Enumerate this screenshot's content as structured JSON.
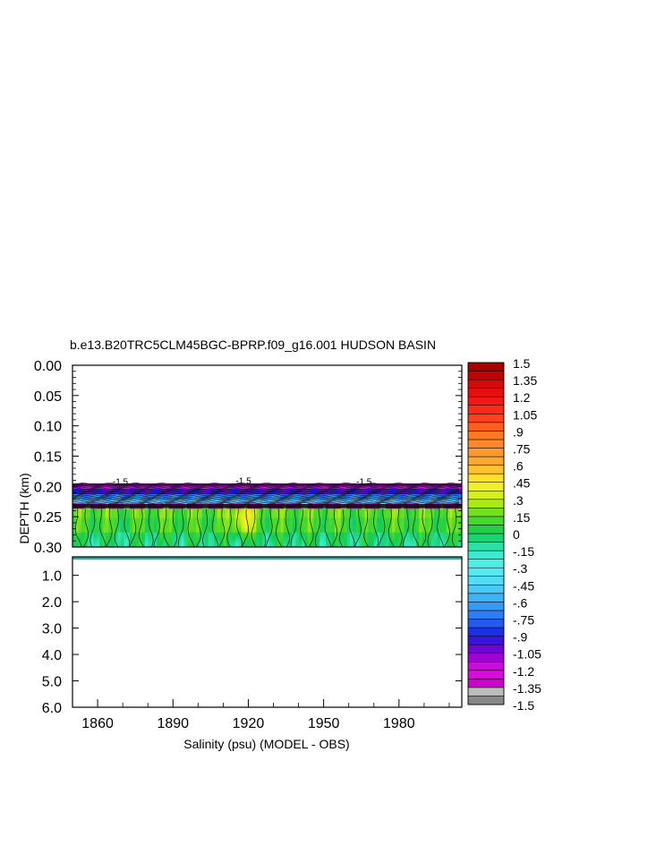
{
  "chart_data": {
    "type": "heatmap",
    "title": "b.e13.B20TRC5CLM45BGC-BPRP.f09_g16.001 HUDSON BASIN",
    "xlabel": "Salinity (psu) (MODEL - OBS)",
    "ylabel": "DEPTH (km)",
    "x_ticks": [
      "1860",
      "1890",
      "1920",
      "1950",
      "1980"
    ],
    "x_tick_values": [
      1860,
      1890,
      1920,
      1950,
      1980
    ],
    "xlim": [
      1850,
      2005
    ],
    "upper_panel": {
      "ylim": [
        0.0,
        0.3
      ],
      "y_ticks": [
        "0.00",
        "0.05",
        "0.10",
        "0.15",
        "0.20",
        "0.25",
        "0.30"
      ],
      "y_tick_values": [
        0.0,
        0.05,
        0.1,
        0.15,
        0.2,
        0.25,
        0.3
      ]
    },
    "lower_panel": {
      "ylim": [
        0.3,
        6.0
      ],
      "y_ticks": [
        "1.0",
        "2.0",
        "3.0",
        "4.0",
        "5.0",
        "6.0"
      ],
      "y_tick_values": [
        1.0,
        2.0,
        3.0,
        4.0,
        5.0,
        6.0
      ]
    },
    "data_depth_range_km": [
      0.195,
      0.305
    ],
    "depth_bands": [
      {
        "depth": [
          0.195,
          0.203
        ],
        "value": -1.15
      },
      {
        "depth": [
          0.203,
          0.212
        ],
        "value": -0.95
      },
      {
        "depth": [
          0.212,
          0.222
        ],
        "value": -0.7
      },
      {
        "depth": [
          0.222,
          0.229
        ],
        "value": -0.5
      },
      {
        "depth": [
          0.229,
          0.236
        ],
        "value": -1.3
      },
      {
        "depth": [
          0.236,
          0.252
        ],
        "value": 0.15
      },
      {
        "depth": [
          0.252,
          0.275
        ],
        "value": 0.1
      },
      {
        "depth": [
          0.275,
          0.305
        ],
        "value": 0.0
      }
    ],
    "hotspots": [
      {
        "year": 1918,
        "depth": 0.255,
        "value": 0.4
      },
      {
        "year": 1870,
        "depth": 0.27,
        "value": 0.05
      },
      {
        "year": 1965,
        "depth": 0.265,
        "value": 0.05
      }
    ],
    "contour_labels": [
      {
        "text": "-1.5",
        "year": 1866,
        "depth": 0.197
      },
      {
        "text": "-1.5",
        "year": 1915,
        "depth": 0.196
      },
      {
        "text": "-1.5",
        "year": 1963,
        "depth": 0.197
      }
    ],
    "colorbar": {
      "min": -1.5,
      "max": 1.5,
      "step": 0.075,
      "labels": [
        "1.5",
        "1.35",
        "1.2",
        "1.05",
        ".9",
        ".75",
        ".6",
        ".45",
        ".3",
        ".15",
        "0",
        "-.15",
        "-.3",
        "-.45",
        "-.6",
        "-.75",
        "-.9",
        "-1.05",
        "-1.2",
        "-1.35",
        "-1.5"
      ],
      "stops": [
        {
          "v": -1.5,
          "color": "#6e6e6e"
        },
        {
          "v": -1.35,
          "color": "#d6d6d6"
        },
        {
          "v": -1.34,
          "color": "#c800c8"
        },
        {
          "v": -1.2,
          "color": "#e010e0"
        },
        {
          "v": -1.05,
          "color": "#8800cc"
        },
        {
          "v": -0.9,
          "color": "#1a1ae6"
        },
        {
          "v": -0.75,
          "color": "#2a70f0"
        },
        {
          "v": -0.6,
          "color": "#3aa8f8"
        },
        {
          "v": -0.45,
          "color": "#4fd6f8"
        },
        {
          "v": -0.3,
          "color": "#5af0f0"
        },
        {
          "v": -0.15,
          "color": "#33e8c0"
        },
        {
          "v": 0.0,
          "color": "#11cc55"
        },
        {
          "v": 0.15,
          "color": "#55dd22"
        },
        {
          "v": 0.3,
          "color": "#c8ee10"
        },
        {
          "v": 0.45,
          "color": "#ffee33"
        },
        {
          "v": 0.6,
          "color": "#ffb030"
        },
        {
          "v": 0.75,
          "color": "#ff9030"
        },
        {
          "v": 0.9,
          "color": "#ff7020"
        },
        {
          "v": 1.05,
          "color": "#ff3020"
        },
        {
          "v": 1.2,
          "color": "#ee1010"
        },
        {
          "v": 1.35,
          "color": "#cc0808"
        },
        {
          "v": 1.5,
          "color": "#990000"
        }
      ]
    }
  }
}
